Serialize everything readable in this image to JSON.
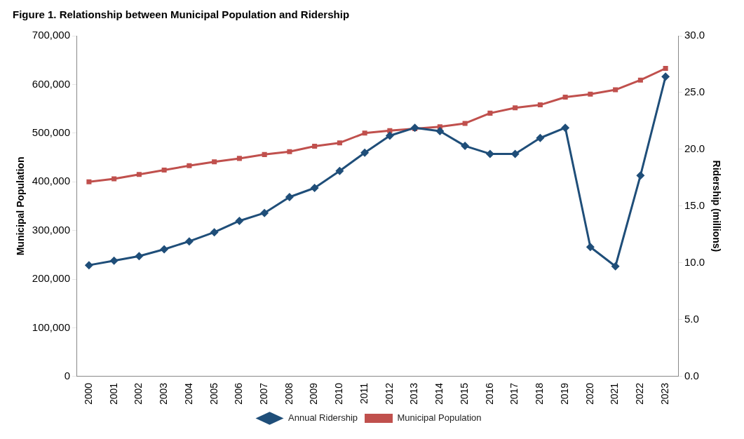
{
  "chart_data": {
    "type": "line",
    "title": "Figure 1. Relationship between Municipal Population and Ridership",
    "categories": [
      "2000",
      "2001",
      "2002",
      "2003",
      "2004",
      "2005",
      "2006",
      "2007",
      "2008",
      "2009",
      "2010",
      "2011",
      "2012",
      "2013",
      "2014",
      "2015",
      "2016",
      "2017",
      "2018",
      "2019",
      "2020",
      "2021",
      "2022",
      "2023"
    ],
    "ylabel": "Municipal Population",
    "y2label": "Ridership (millions)",
    "ylim": [
      0,
      700000
    ],
    "yticks": [
      {
        "value": 0,
        "label": "0"
      },
      {
        "value": 100000,
        "label": "100,000"
      },
      {
        "value": 200000,
        "label": "200,000"
      },
      {
        "value": 300000,
        "label": "300,000"
      },
      {
        "value": 400000,
        "label": "400,000"
      },
      {
        "value": 500000,
        "label": "500,000"
      },
      {
        "value": 600000,
        "label": "600,000"
      },
      {
        "value": 700000,
        "label": "700,000"
      }
    ],
    "y2lim": [
      0,
      30
    ],
    "y2ticks": [
      {
        "value": 0,
        "label": "0.0"
      },
      {
        "value": 5,
        "label": "5.0"
      },
      {
        "value": 10,
        "label": "10.0"
      },
      {
        "value": 15,
        "label": "15.0"
      },
      {
        "value": 20,
        "label": "20.0"
      },
      {
        "value": 25,
        "label": "25.0"
      },
      {
        "value": 30,
        "label": "30.0"
      }
    ],
    "grid": false,
    "legend": "bottom",
    "series": [
      {
        "name": "Municipal Population",
        "color": "#c0504d",
        "marker": "square",
        "values": [
          400000,
          406000,
          415000,
          424000,
          433000,
          441000,
          448000,
          456000,
          462000,
          473000,
          480000,
          500000,
          505000,
          509000,
          513000,
          520000,
          541000,
          552000,
          558000,
          574000,
          580000,
          589000,
          609000,
          633000
        ]
      },
      {
        "name": "Annual Ridership",
        "color": "#1f4e79",
        "marker": "diamond",
        "axis": "y2",
        "values": [
          9.8,
          10.2,
          10.6,
          11.2,
          11.9,
          12.7,
          13.7,
          14.4,
          15.8,
          16.6,
          18.1,
          19.7,
          21.2,
          21.9,
          21.6,
          20.3,
          19.6,
          19.6,
          21.0,
          21.9,
          11.4,
          9.7,
          17.7,
          26.4
        ]
      }
    ]
  }
}
